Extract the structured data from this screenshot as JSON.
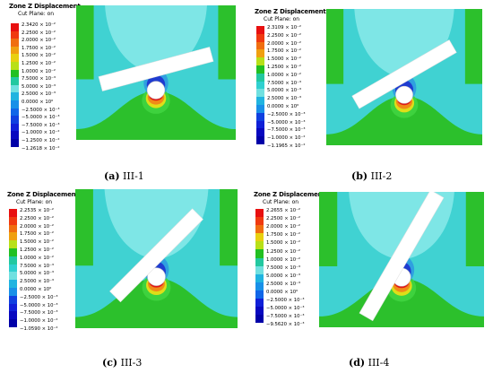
{
  "panels": [
    {
      "id": "a",
      "caption_letter": "(a)",
      "caption_text": "III-1",
      "legend_title": "Zone Z Displacement",
      "legend_subtitle": "Cut Plane: on",
      "legend_labels": [
        "2.3420 × 10⁻²",
        "2.2500 × 10⁻²",
        "2.0000 × 10⁻²",
        "1.7500 × 10⁻²",
        "1.5000 × 10⁻²",
        "1.2500 × 10⁻²",
        "1.0000 × 10⁻²",
        "7.5000 × 10⁻³",
        "5.0000 × 10⁻³",
        "2.5000 × 10⁻³",
        "0.0000 × 10⁰",
        "−2.5000 × 10⁻³",
        "−5.0000 × 10⁻³",
        "−7.5000 × 10⁻³",
        "−1.0000 × 10⁻²",
        "−1.2500 × 10⁻²",
        "−1.2618 × 10⁻²"
      ],
      "joint_angle_deg": 15
    },
    {
      "id": "b",
      "caption_letter": "(b)",
      "caption_text": "III-2",
      "legend_title": "Zone Z Displacement",
      "legend_subtitle": "Cut Plane: on",
      "legend_labels": [
        "2.3109 × 10⁻²",
        "2.2500 × 10⁻²",
        "2.0000 × 10⁻²",
        "1.7500 × 10⁻²",
        "1.5000 × 10⁻²",
        "1.2500 × 10⁻²",
        "1.0000 × 10⁻²",
        "7.5000 × 10⁻³",
        "5.0000 × 10⁻³",
        "2.5000 × 10⁻³",
        "0.0000 × 10⁰",
        "−2.5000 × 10⁻³",
        "−5.0000 × 10⁻³",
        "−7.5000 × 10⁻³",
        "−1.0000 × 10⁻²",
        "−1.1965 × 10⁻²"
      ],
      "joint_angle_deg": 30
    },
    {
      "id": "c",
      "caption_letter": "(c)",
      "caption_text": "III-3",
      "legend_title": "Zone Z Displacement",
      "legend_subtitle": "Cut Plane: on",
      "legend_labels": [
        "2.2535 × 10⁻²",
        "2.2500 × 10⁻²",
        "2.0000 × 10⁻²",
        "1.7500 × 10⁻²",
        "1.5000 × 10⁻²",
        "1.2500 × 10⁻²",
        "1.0000 × 10⁻²",
        "7.5000 × 10⁻³",
        "5.0000 × 10⁻³",
        "2.5000 × 10⁻³",
        "0.0000 × 10⁰",
        "−2.5000 × 10⁻³",
        "−5.0000 × 10⁻³",
        "−7.5000 × 10⁻³",
        "−1.0000 × 10⁻²",
        "−1.0590 × 10⁻²"
      ],
      "joint_angle_deg": 45
    },
    {
      "id": "d",
      "caption_letter": "(d)",
      "caption_text": "III-4",
      "legend_title": "Zone Z Displacement",
      "legend_subtitle": "Cut Plane: on",
      "legend_labels": [
        "2.2655 × 10⁻²",
        "2.2500 × 10⁻²",
        "2.0000 × 10⁻²",
        "1.7500 × 10⁻²",
        "1.5000 × 10⁻²",
        "1.2500 × 10⁻²",
        "1.0000 × 10⁻²",
        "7.5000 × 10⁻³",
        "5.0000 × 10⁻³",
        "2.5000 × 10⁻³",
        "0.0000 × 10⁰",
        "−2.5000 × 10⁻³",
        "−5.0000 × 10⁻³",
        "−7.5000 × 10⁻³",
        "−9.5620 × 10⁻³"
      ],
      "joint_angle_deg": 60
    }
  ],
  "colors": {
    "light_cyan": "#7ee6e6",
    "cyan": "#40d2d2",
    "green": "#2cc02c",
    "lime": "#3ed23e",
    "blue": "#1f3cd0",
    "yellow": "#dede18",
    "orange": "#f08a18",
    "red": "#e01818"
  },
  "legend_colors": [
    "#e81010",
    "#f03a10",
    "#f06e10",
    "#f0a010",
    "#e8d010",
    "#b8e018",
    "#22c022",
    "#22c8a0",
    "#30d0d0",
    "#70e0e0",
    "#20b4e0",
    "#1890e8",
    "#1066e8",
    "#1040e0",
    "#1020d8",
    "#0808c0",
    "#0000a8"
  ]
}
